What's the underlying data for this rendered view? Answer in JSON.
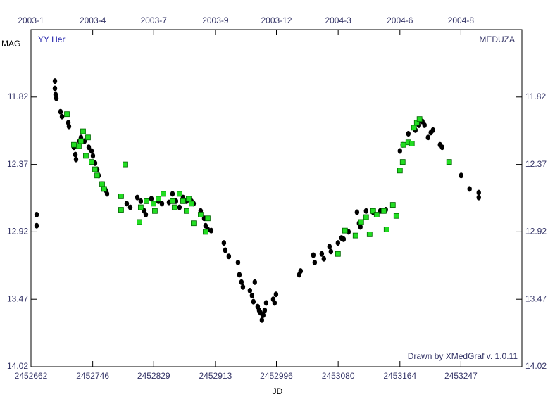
{
  "chart_data": {
    "type": "scatter",
    "title": "YY Her",
    "annotation_right": "MEDUZA",
    "footer": "Drawn by XMedGraf v. 1.0.11",
    "xlabel": "JD",
    "ylabel": "MAG",
    "xlim": [
      2452662,
      2453330
    ],
    "ylim": [
      14.02,
      11.27
    ],
    "xticks": [
      2452662,
      2452746,
      2452829,
      2452913,
      2452996,
      2453080,
      2453164,
      2453247
    ],
    "x2ticks": [
      {
        "value": 2452662,
        "label": "2003-1"
      },
      {
        "value": 2452746,
        "label": "2003-4"
      },
      {
        "value": 2452829,
        "label": "2003-7"
      },
      {
        "value": 2452913,
        "label": "2003-9"
      },
      {
        "value": 2452996,
        "label": "2003-12"
      },
      {
        "value": 2453080,
        "label": "2004-3"
      },
      {
        "value": 2453164,
        "label": "2004-6"
      },
      {
        "value": 2453247,
        "label": "2004-8"
      }
    ],
    "yticks": [
      11.82,
      12.37,
      12.92,
      13.47,
      14.02
    ],
    "series": [
      {
        "color": "#000000",
        "marker": "circle",
        "x": [
          2452669.7,
          2452669.7,
          2452694.6,
          2452694.6,
          2452695.5,
          2452696.5,
          2452702.2,
          2452704.2,
          2452712.8,
          2452713.7,
          2452720.4,
          2452722.4,
          2452723.3,
          2452728.1,
          2452730.0,
          2452734.8,
          2452740.6,
          2452744.4,
          2452746.3,
          2452749.2,
          2452752.1,
          2452754.0,
          2452758.8,
          2452763.5,
          2452765.5,
          2452792.3,
          2452797.1,
          2452806.7,
          2452811.4,
          2452816.2,
          2452818.2,
          2452825.8,
          2452835.4,
          2452840.2,
          2452849.8,
          2452854.6,
          2452859.3,
          2452864.1,
          2452868.9,
          2452873.7,
          2452880.4,
          2452883.3,
          2452892.9,
          2452897.7,
          2452899.6,
          2452902.5,
          2452907.2,
          2452924.5,
          2452926.4,
          2452931.2,
          2452943.7,
          2452945.6,
          2452948.4,
          2452950.4,
          2452959.9,
          2452962.8,
          2452964.7,
          2452966.6,
          2452970.5,
          2452972.4,
          2452974.3,
          2452976.2,
          2452978.1,
          2452980.1,
          2452982.0,
          2452991.6,
          2452993.5,
          2452995.4,
          2453027.0,
          2453028.9,
          2453046.2,
          2453048.1,
          2453057.7,
          2453060.5,
          2453068.2,
          2453070.1,
          2453079.7,
          2453084.5,
          2453087.4,
          2453094.1,
          2453105.6,
          2453108.4,
          2453110.3,
          2453118.0,
          2453127.6,
          2453137.2,
          2453144.8,
          2453164.0,
          2453167.8,
          2453175.5,
          2453185.1,
          2453189.9,
          2453194.6,
          2453197.5,
          2453202.3,
          2453206.1,
          2453209.0,
          2453218.6,
          2453221.5,
          2453247.3,
          2453258.8,
          2453271.3,
          2453271.3
        ],
        "values": [
          12.78,
          12.87,
          11.69,
          11.75,
          11.8,
          11.83,
          11.94,
          11.98,
          12.03,
          12.06,
          12.23,
          12.29,
          12.33,
          12.18,
          12.15,
          12.18,
          12.23,
          12.26,
          12.3,
          12.36,
          12.41,
          12.46,
          12.53,
          12.58,
          12.61,
          12.69,
          12.72,
          12.64,
          12.67,
          12.75,
          12.78,
          12.65,
          12.67,
          12.69,
          12.68,
          12.61,
          12.67,
          12.72,
          12.64,
          12.67,
          12.67,
          12.69,
          12.75,
          12.81,
          12.87,
          12.9,
          12.91,
          13.01,
          13.07,
          13.12,
          13.17,
          13.27,
          13.33,
          13.37,
          13.4,
          13.44,
          13.49,
          13.33,
          13.53,
          13.56,
          13.58,
          13.64,
          13.6,
          13.56,
          13.5,
          13.47,
          13.5,
          13.43,
          13.27,
          13.24,
          13.11,
          13.17,
          13.1,
          13.14,
          13.04,
          13.08,
          13.01,
          12.97,
          12.98,
          12.92,
          12.76,
          12.85,
          12.88,
          12.75,
          12.76,
          12.75,
          12.74,
          12.26,
          12.21,
          12.12,
          12.09,
          12.05,
          12.02,
          12.05,
          12.15,
          12.11,
          12.09,
          12.21,
          12.23,
          12.46,
          12.57,
          12.6,
          12.64
        ]
      },
      {
        "color": "#22dd22",
        "marker": "square",
        "x": [
          2452710.9,
          2452720.4,
          2452727.1,
          2452730.0,
          2452732.9,
          2452736.7,
          2452739.6,
          2452744.4,
          2452749.2,
          2452752.1,
          2452758.8,
          2452761.6,
          2452784.6,
          2452784.6,
          2452790.4,
          2452809.5,
          2452811.4,
          2452819.1,
          2452828.7,
          2452830.6,
          2452835.4,
          2452842.1,
          2452854.6,
          2452857.4,
          2452864.1,
          2452868.9,
          2452873.7,
          2452876.6,
          2452880.4,
          2452883.3,
          2452892.9,
          2452899.6,
          2452902.5,
          2453079.7,
          2453089.3,
          2453103.6,
          2453111.3,
          2453118.0,
          2453122.8,
          2453127.6,
          2453132.4,
          2453142.0,
          2453145.8,
          2453154.4,
          2453159.2,
          2453164.0,
          2453167.8,
          2453168.7,
          2453175.5,
          2453180.2,
          2453183.1,
          2453187.0,
          2453190.7,
          2453231.0
        ],
        "values": [
          11.96,
          12.21,
          12.22,
          12.18,
          12.1,
          12.3,
          12.15,
          12.35,
          12.41,
          12.46,
          12.53,
          12.57,
          12.63,
          12.74,
          12.37,
          12.84,
          12.72,
          12.67,
          12.69,
          12.75,
          12.65,
          12.61,
          12.67,
          12.72,
          12.61,
          12.67,
          12.75,
          12.65,
          12.69,
          12.85,
          12.78,
          12.92,
          12.81,
          13.1,
          12.91,
          12.95,
          12.84,
          12.8,
          12.94,
          12.75,
          12.78,
          12.75,
          12.9,
          12.7,
          12.79,
          12.42,
          12.35,
          12.21,
          12.19,
          12.2,
          12.07,
          12.03,
          12.0,
          12.35
        ]
      }
    ]
  }
}
